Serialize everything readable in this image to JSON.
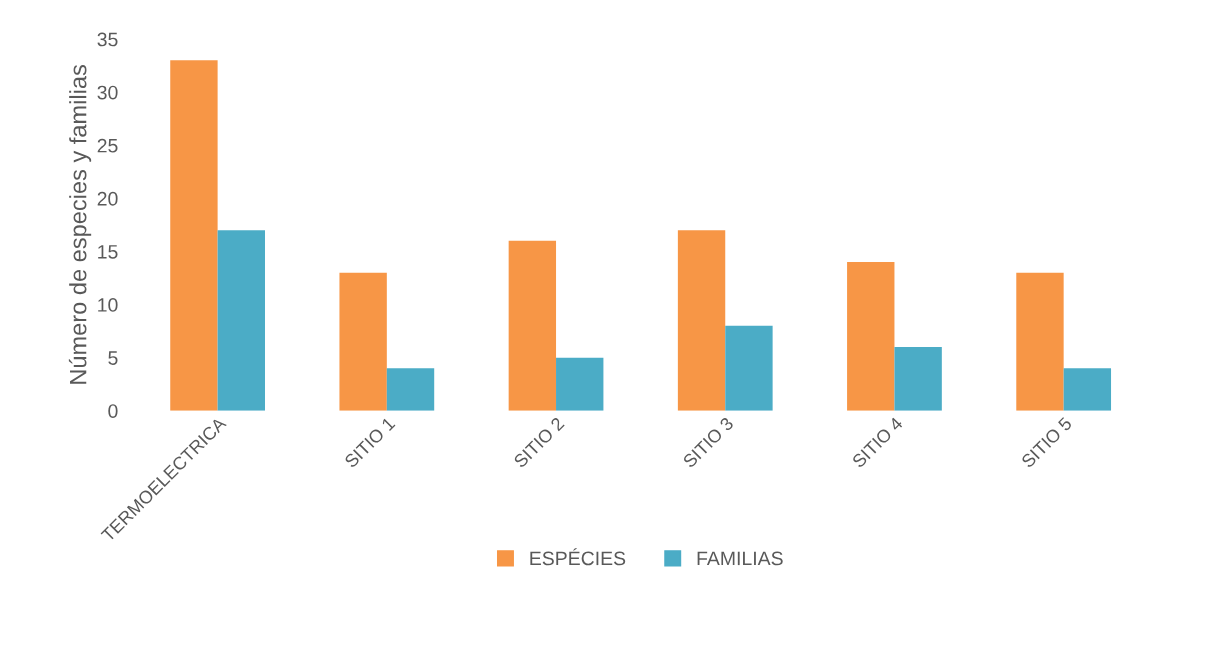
{
  "chart_data": {
    "type": "bar",
    "ylabel": "Número de especies y familias",
    "categories": [
      "TERMOELECTRICA",
      "SITIO 1",
      "SITIO 2",
      "SITIO 3",
      "SITIO 4",
      "SITIO 5"
    ],
    "series": [
      {
        "name": "ESPÉCIES",
        "color": "#f79646",
        "values": [
          33,
          13,
          16,
          17,
          14,
          13
        ]
      },
      {
        "name": "FAMILIAS",
        "color": "#4bacc6",
        "values": [
          17,
          4,
          5,
          8,
          6,
          4
        ]
      }
    ],
    "ylim": [
      0,
      35
    ],
    "yticks": [
      0,
      5,
      10,
      15,
      20,
      25,
      30,
      35
    ],
    "grid": false,
    "legend": "bottom"
  }
}
